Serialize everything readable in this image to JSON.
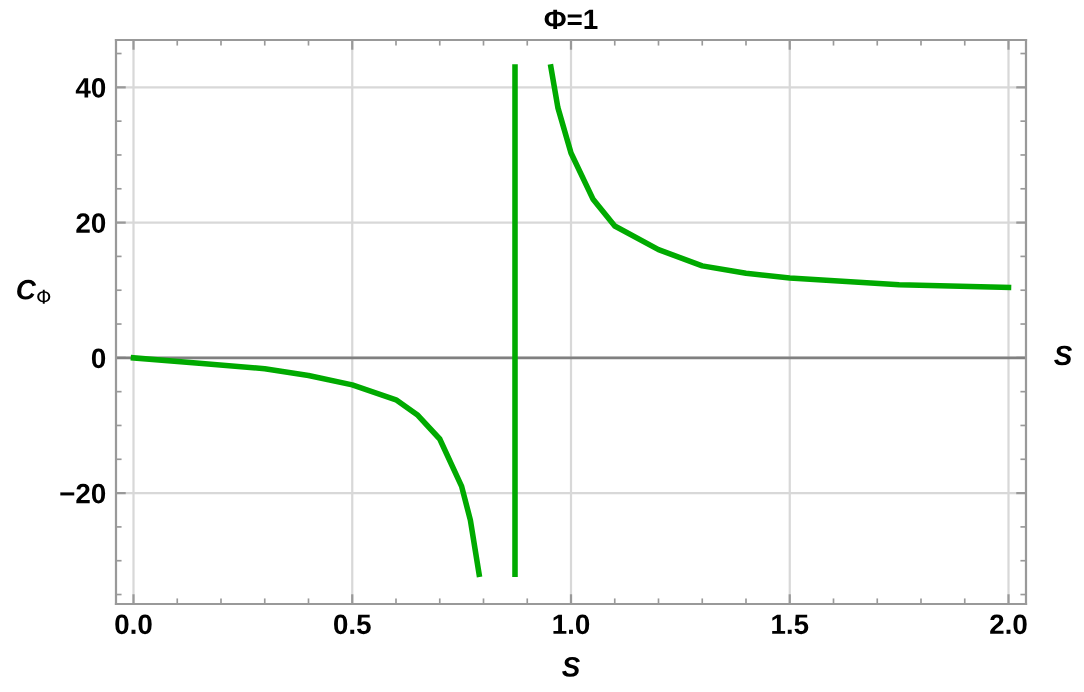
{
  "chart_data": {
    "type": "line",
    "title": "Φ=1",
    "xlabel": "S",
    "ylabel": "C$_{Φ}$",
    "annotations": [
      "S"
    ],
    "series": [
      {
        "color": "#00aa00",
        "x": [
          0,
          0.15,
          0.3,
          0.4,
          0.5,
          0.6,
          0.65,
          0.7,
          0.75,
          0.77,
          0.79
        ],
        "values": [
          0,
          -0.8,
          -1.6,
          -2.6,
          -4,
          -6.2,
          -8.5,
          -12,
          -19,
          -24,
          -32
        ]
      },
      {
        "color": "#00aa00",
        "x": [
          0.872,
          0.872
        ],
        "values": [
          -32,
          43
        ]
      },
      {
        "color": "#00aa00",
        "x": [
          0.954,
          0.97,
          1.0,
          1.05,
          1.1,
          1.2,
          1.3,
          1.4,
          1.5,
          1.75,
          2.0
        ],
        "values": [
          43,
          37,
          30.3,
          23.5,
          19.5,
          16,
          13.6,
          12.5,
          11.8,
          10.8,
          10.4
        ]
      }
    ],
    "xlim": [
      -0.04,
      2.04
    ],
    "ylim": [
      -36.4,
      47
    ],
    "xticks": [
      {
        "value": 0,
        "label": "0.0"
      },
      0.5,
      {
        "value": 1,
        "label": "1.0"
      },
      1.5,
      {
        "value": 2,
        "label": "2.0"
      }
    ],
    "yticks": [
      {
        "value": -20,
        "label": "−20"
      },
      0,
      20,
      40
    ],
    "ref_lines": [
      {
        "axis": "y",
        "value": 0,
        "color": "#808080"
      }
    ],
    "grid": true,
    "marker": "none",
    "line_style": "solid"
  }
}
